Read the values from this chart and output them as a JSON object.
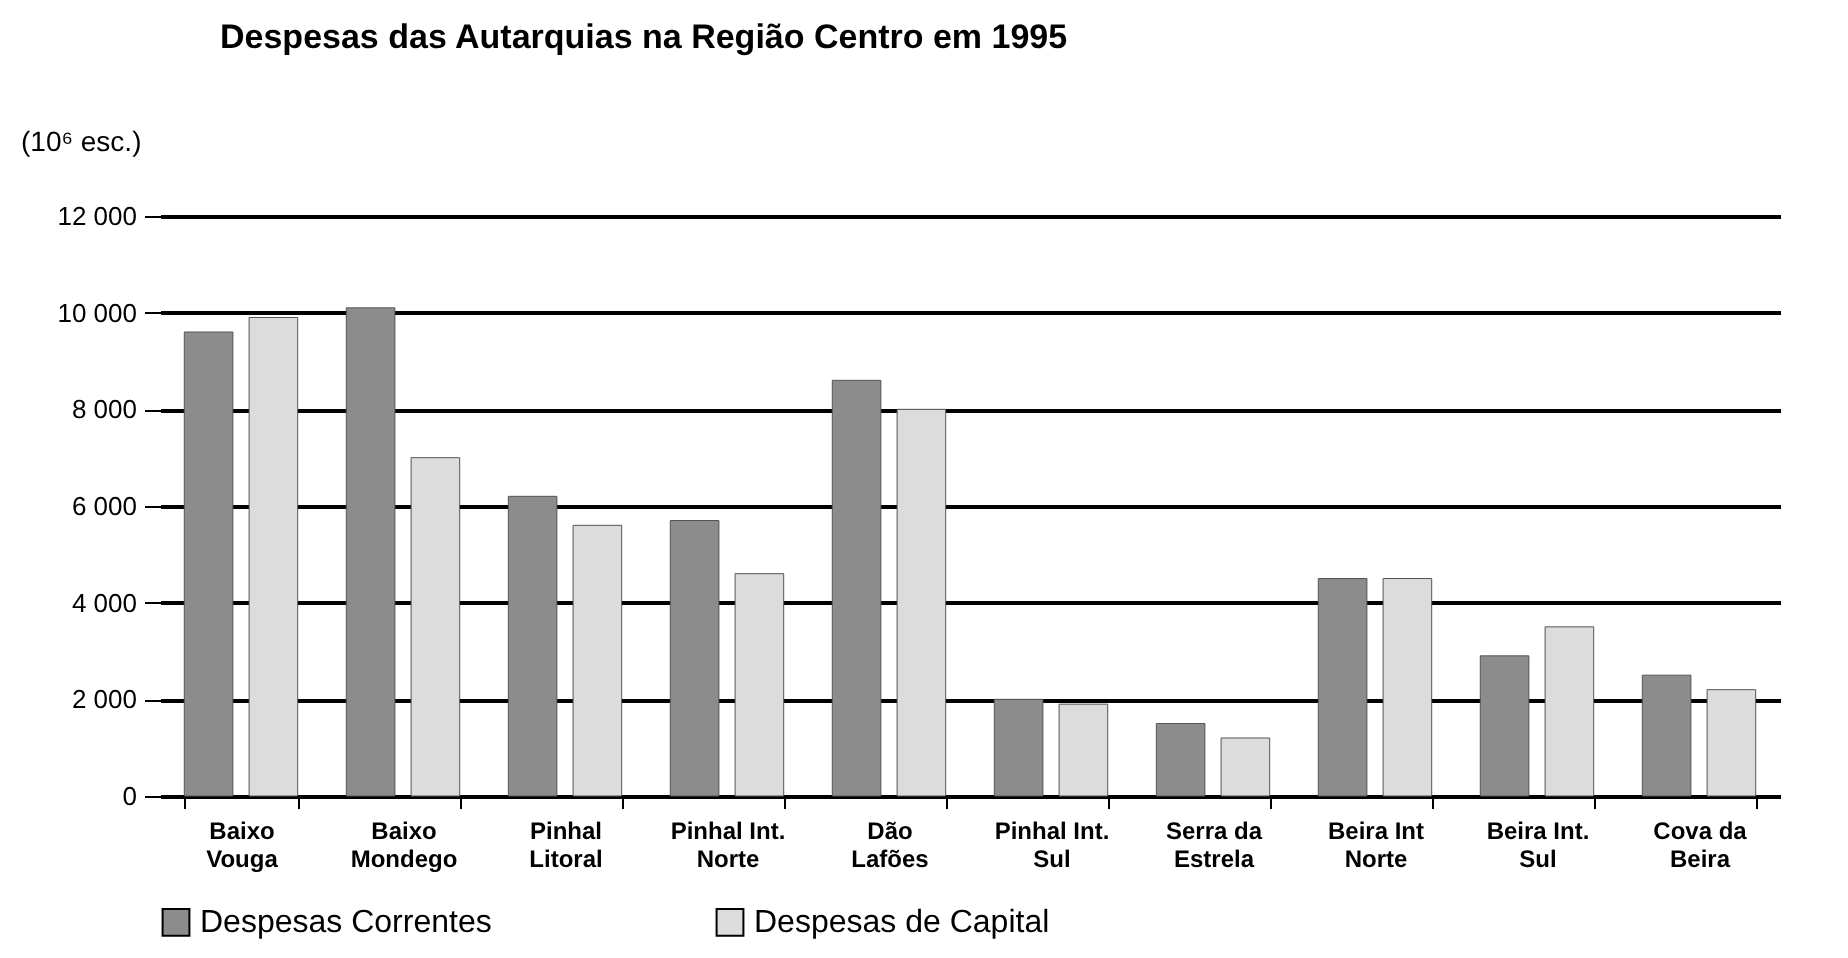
{
  "chart_data": {
    "type": "bar",
    "title": "Despesas das Autarquias na Região Centro em 1995",
    "ylabel": "(10⁶ esc.)",
    "categories": [
      "Baixo Vouga",
      "Baixo Mondego",
      "Pinhal Litoral",
      "Pinhal Int. Norte",
      "Dão Lafões",
      "Pinhal Int. Sul",
      "Serra da Estrela",
      "Beira Int Norte",
      "Beira Int. Sul",
      "Cova da Beira"
    ],
    "series": [
      {
        "name": "Despesas Correntes",
        "color": "#8c8c8c",
        "values": [
          9600,
          10100,
          6200,
          5700,
          8600,
          2000,
          1500,
          4500,
          2900,
          2500
        ]
      },
      {
        "name": "Despesas de Capital",
        "color": "#dcdcdc",
        "values": [
          9900,
          7000,
          5600,
          4600,
          8000,
          1900,
          1200,
          4500,
          3500,
          2200
        ]
      }
    ],
    "ylim": [
      0,
      12000
    ],
    "yticks": [
      0,
      {
        "value": 2000,
        "label": "2 000"
      },
      {
        "value": 4000,
        "label": "4 000"
      },
      {
        "value": 6000,
        "label": "6 000"
      },
      {
        "value": 8000,
        "label": "8 000"
      },
      {
        "value": 10000,
        "label": "10 000"
      },
      {
        "value": 12000,
        "label": "12 000"
      }
    ],
    "grid": "y",
    "legend": "bottom"
  }
}
